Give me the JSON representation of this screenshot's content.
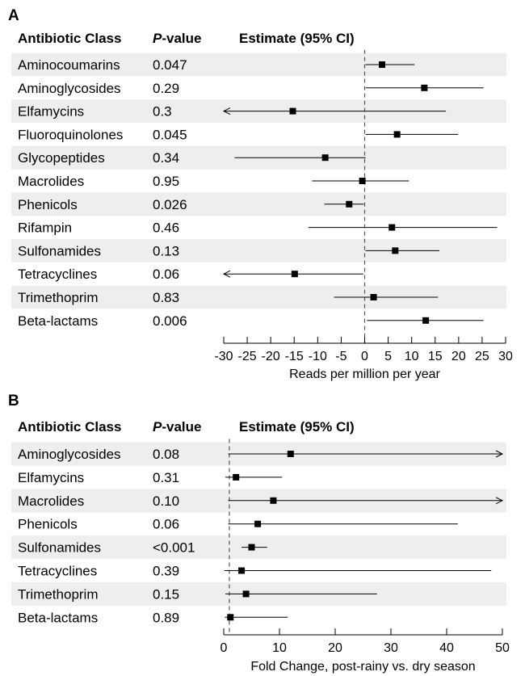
{
  "chart_data": [
    {
      "type": "forest",
      "panel_label": "A",
      "headers": {
        "class": "Antibiotic Class",
        "p_prefix": "P",
        "p_suffix": "-value",
        "estimate": "Estimate (95% CI)"
      },
      "xlabel": "Reads per million per year",
      "xlim": [
        -30,
        30
      ],
      "xticks": [
        -30,
        -25,
        -20,
        -15,
        -10,
        -5,
        0,
        5,
        10,
        15,
        20,
        25,
        30
      ],
      "reference_line": 0,
      "rows": [
        {
          "class": "Aminocoumarins",
          "p": "0.047",
          "estimate": 3.7,
          "lower": 0.2,
          "upper": 10.6
        },
        {
          "class": "Aminoglycosides",
          "p": "0.29",
          "estimate": 12.7,
          "lower": 0.2,
          "upper": 25.3
        },
        {
          "class": "Elfamycins",
          "p": "0.3",
          "estimate": -15.3,
          "lower": -30,
          "upper": 17.3,
          "lower_arrow": true
        },
        {
          "class": "Fluoroquinolones",
          "p": "0.045",
          "estimate": 6.9,
          "lower": 0.2,
          "upper": 19.9
        },
        {
          "class": "Glycopeptides",
          "p": "0.34",
          "estimate": -8.4,
          "lower": -27.7,
          "upper": 0.2
        },
        {
          "class": "Macrolides",
          "p": "0.95",
          "estimate": -0.5,
          "lower": -11.2,
          "upper": 9.4
        },
        {
          "class": "Phenicols",
          "p": "0.026",
          "estimate": -3.3,
          "lower": -8.6,
          "upper": -0.2
        },
        {
          "class": "Rifampin",
          "p": "0.46",
          "estimate": 5.8,
          "lower": -12.0,
          "upper": 28.2
        },
        {
          "class": "Sulfonamides",
          "p": "0.13",
          "estimate": 6.5,
          "lower": 0.2,
          "upper": 15.9
        },
        {
          "class": "Tetracyclines",
          "p": "0.06",
          "estimate": -14.9,
          "lower": -30,
          "upper": -0.3,
          "lower_arrow": true
        },
        {
          "class": "Trimethoprim",
          "p": "0.83",
          "estimate": 1.9,
          "lower": -6.5,
          "upper": 15.6
        },
        {
          "class": "Beta-lactams",
          "p": "0.006",
          "estimate": 13.0,
          "lower": 0.5,
          "upper": 25.3
        }
      ]
    },
    {
      "type": "forest",
      "panel_label": "B",
      "headers": {
        "class": "Antibiotic Class",
        "p_prefix": "P",
        "p_suffix": "-value",
        "estimate": "Estimate (95% CI)"
      },
      "xlabel": "Fold Change, post-rainy vs. dry season",
      "xlim": [
        0,
        50
      ],
      "xticks": [
        0,
        10,
        20,
        30,
        40,
        50
      ],
      "reference_line": 1,
      "rows": [
        {
          "class": "Aminoglycosides",
          "p": "0.08",
          "estimate": 12.0,
          "lower": 0.8,
          "upper": 50,
          "upper_arrow": true
        },
        {
          "class": "Elfamycins",
          "p": "0.31",
          "estimate": 2.2,
          "lower": 0.3,
          "upper": 10.5
        },
        {
          "class": "Macrolides",
          "p": "0.10",
          "estimate": 8.9,
          "lower": 0.8,
          "upper": 50,
          "upper_arrow": true
        },
        {
          "class": "Phenicols",
          "p": "0.06",
          "estimate": 6.1,
          "lower": 0.8,
          "upper": 42.0
        },
        {
          "class": "Sulfonamides",
          "p": "<0.001",
          "estimate": 5.0,
          "lower": 3.2,
          "upper": 7.8
        },
        {
          "class": "Tetracyclines",
          "p": "0.39",
          "estimate": 3.2,
          "lower": 0.1,
          "upper": 48.0
        },
        {
          "class": "Trimethoprim",
          "p": "0.15",
          "estimate": 4.0,
          "lower": 0.3,
          "upper": 27.5
        },
        {
          "class": "Beta-lactams",
          "p": "0.89",
          "estimate": 1.2,
          "lower": 0.2,
          "upper": 11.5
        }
      ]
    }
  ]
}
